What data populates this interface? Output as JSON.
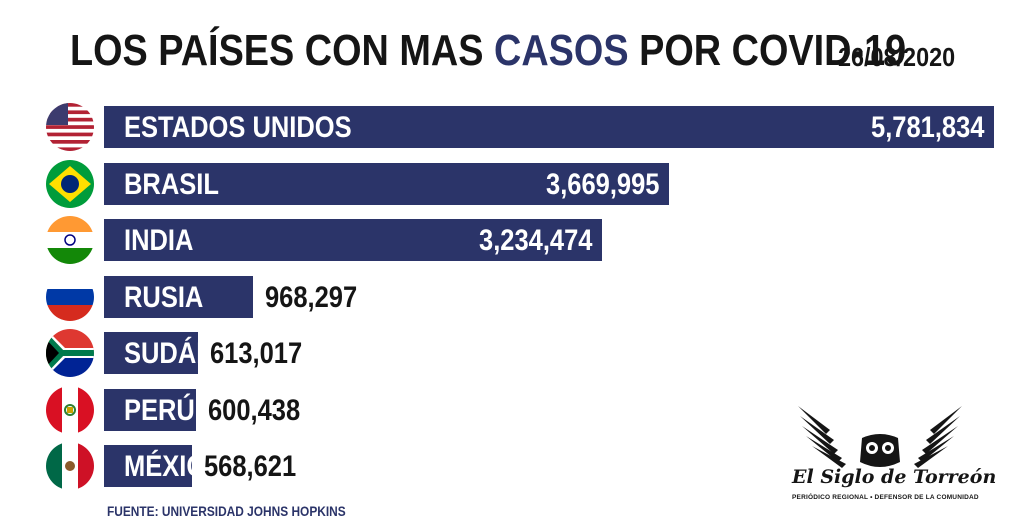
{
  "header": {
    "title_prefix": "LOS PAÍSES CON MAS",
    "title_highlight": "CASOS",
    "title_suffix": "POR COVID-19",
    "date": "26/08/2020"
  },
  "chart_data": {
    "type": "bar",
    "orientation": "horizontal",
    "title": "LOS PAÍSES CON MAS CASOS POR COVID-19",
    "categories": [
      "ESTADOS UNIDOS",
      "BRASIL",
      "INDIA",
      "RUSIA",
      "SUDÁFRICA",
      "PERÚ",
      "MÉXICO"
    ],
    "values": [
      5781834,
      3669995,
      3234474,
      968297,
      613017,
      600438,
      568621
    ],
    "value_labels": [
      "5,781,834",
      "3,669,995",
      "3,234,474",
      "968,297",
      "613,017",
      "600,438",
      "568,621"
    ],
    "flags": [
      "usa-flag-icon",
      "brazil-flag-icon",
      "india-flag-icon",
      "russia-flag-icon",
      "south-africa-flag-icon",
      "peru-flag-icon",
      "mexico-flag-icon"
    ],
    "xlim": [
      0,
      5781834
    ],
    "grid": false,
    "legend": "none",
    "bar_color": "#2b3469"
  },
  "footer": {
    "source": "FUENTE: UNIVERSIDAD JOHNS HOPKINS",
    "logo_name": "El Siglo de Torreón",
    "logo_tagline": "PERIÓDICO REGIONAL  •  DEFENSOR DE LA COMUNIDAD"
  },
  "colors": {
    "accent": "#2b3469",
    "text": "#151515"
  }
}
